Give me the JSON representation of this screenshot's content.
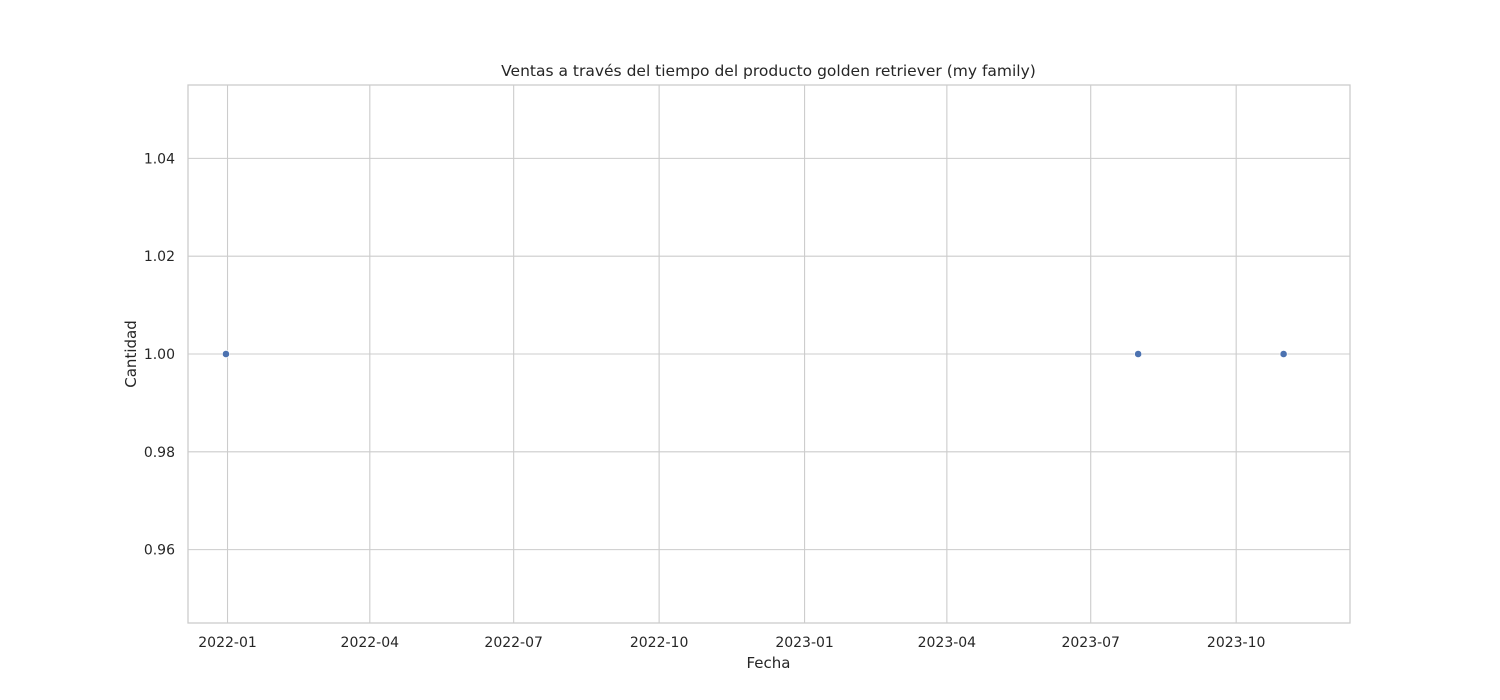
{
  "chart_data": {
    "type": "scatter",
    "title": "Ventas a través del tiempo del producto golden retriever (my family)",
    "xlabel": "Fecha",
    "ylabel": "Cantidad",
    "x_axis_type": "date",
    "xlim": [
      "2021-12-07",
      "2023-12-12"
    ],
    "ylim": [
      0.945,
      1.055
    ],
    "x_ticks": [
      "2022-01-01",
      "2022-04-01",
      "2022-07-01",
      "2022-10-01",
      "2023-01-01",
      "2023-04-01",
      "2023-07-01",
      "2023-10-01"
    ],
    "x_tick_labels": [
      "2022-01",
      "2022-04",
      "2022-07",
      "2022-10",
      "2023-01",
      "2023-04",
      "2023-07",
      "2023-10"
    ],
    "y_ticks": [
      0.96,
      0.98,
      1.0,
      1.02,
      1.04
    ],
    "y_tick_labels": [
      "0.96",
      "0.98",
      "1.00",
      "1.02",
      "1.04"
    ],
    "grid": true,
    "series": [
      {
        "color": "#4c72b0",
        "points": [
          {
            "x": "2021-12-31",
            "y": 1.0
          },
          {
            "x": "2023-07-31",
            "y": 1.0
          },
          {
            "x": "2023-10-31",
            "y": 1.0
          }
        ]
      }
    ]
  }
}
